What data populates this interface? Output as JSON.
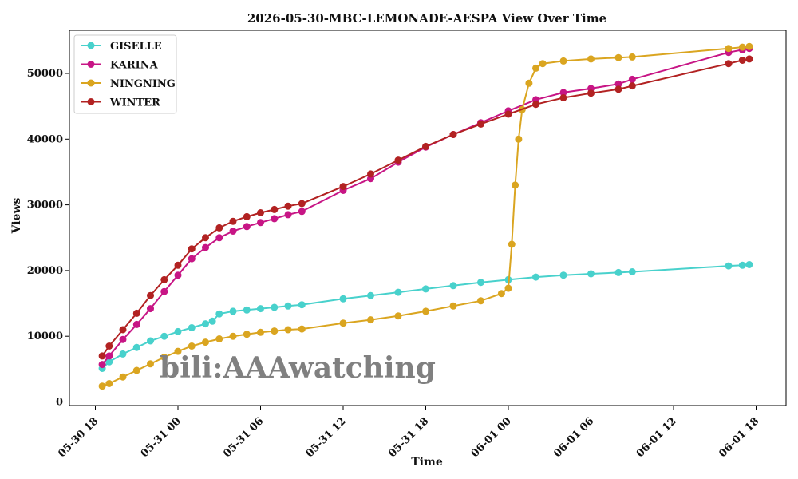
{
  "chart_data": {
    "type": "line",
    "title": "2026-05-30-MBC-LEMONADE-AESPA View Over Time",
    "xlabel": "Time",
    "ylabel": "Views",
    "x_axis": "datetime",
    "xlim": [
      "2026-05-30 18:00",
      "2026-06-01 18:00"
    ],
    "ylim": [
      0,
      56000
    ],
    "x_ticks": [
      "05-30 18",
      "05-31 00",
      "05-31 06",
      "05-31 12",
      "05-31 18",
      "06-01 00",
      "06-01 06",
      "06-01 12",
      "06-01 18"
    ],
    "y_ticks": [
      "0",
      "10000",
      "20000",
      "30000",
      "40000",
      "50000"
    ],
    "grid": false,
    "legend_position": "top-left",
    "watermark": "bili:AAAwatching",
    "series": [
      {
        "name": "GISELLE",
        "color": "#48D1CC",
        "points": [
          [
            "2026-05-30 18:30",
            5100
          ],
          [
            "2026-05-30 19:00",
            6100
          ],
          [
            "2026-05-30 20:00",
            7300
          ],
          [
            "2026-05-30 21:00",
            8300
          ],
          [
            "2026-05-30 22:00",
            9300
          ],
          [
            "2026-05-30 23:00",
            10000
          ],
          [
            "2026-05-31 00:00",
            10700
          ],
          [
            "2026-05-31 01:00",
            11300
          ],
          [
            "2026-05-31 02:00",
            11900
          ],
          [
            "2026-05-31 02:30",
            12300
          ],
          [
            "2026-05-31 03:00",
            13400
          ],
          [
            "2026-05-31 04:00",
            13800
          ],
          [
            "2026-05-31 05:00",
            14000
          ],
          [
            "2026-05-31 06:00",
            14200
          ],
          [
            "2026-05-31 07:00",
            14400
          ],
          [
            "2026-05-31 08:00",
            14600
          ],
          [
            "2026-05-31 09:00",
            14800
          ],
          [
            "2026-05-31 12:00",
            15700
          ],
          [
            "2026-05-31 14:00",
            16200
          ],
          [
            "2026-05-31 16:00",
            16700
          ],
          [
            "2026-05-31 18:00",
            17200
          ],
          [
            "2026-05-31 20:00",
            17700
          ],
          [
            "2026-05-31 22:00",
            18200
          ],
          [
            "2026-06-01 00:00",
            18600
          ],
          [
            "2026-06-01 02:00",
            19000
          ],
          [
            "2026-06-01 04:00",
            19300
          ],
          [
            "2026-06-01 06:00",
            19500
          ],
          [
            "2026-06-01 08:00",
            19700
          ],
          [
            "2026-06-01 09:00",
            19800
          ],
          [
            "2026-06-01 16:00",
            20700
          ],
          [
            "2026-06-01 17:00",
            20800
          ],
          [
            "2026-06-01 17:30",
            20900
          ]
        ]
      },
      {
        "name": "KARINA",
        "color": "#C71585",
        "points": [
          [
            "2026-05-30 18:30",
            5700
          ],
          [
            "2026-05-30 19:00",
            7000
          ],
          [
            "2026-05-30 20:00",
            9500
          ],
          [
            "2026-05-30 21:00",
            11800
          ],
          [
            "2026-05-30 22:00",
            14200
          ],
          [
            "2026-05-30 23:00",
            16800
          ],
          [
            "2026-05-31 00:00",
            19300
          ],
          [
            "2026-05-31 01:00",
            21800
          ],
          [
            "2026-05-31 02:00",
            23500
          ],
          [
            "2026-05-31 03:00",
            25000
          ],
          [
            "2026-05-31 04:00",
            26000
          ],
          [
            "2026-05-31 05:00",
            26700
          ],
          [
            "2026-05-31 06:00",
            27300
          ],
          [
            "2026-05-31 07:00",
            27900
          ],
          [
            "2026-05-31 08:00",
            28500
          ],
          [
            "2026-05-31 09:00",
            29000
          ],
          [
            "2026-05-31 12:00",
            32200
          ],
          [
            "2026-05-31 14:00",
            34000
          ],
          [
            "2026-05-31 16:00",
            36500
          ],
          [
            "2026-05-31 18:00",
            38800
          ],
          [
            "2026-05-31 20:00",
            40700
          ],
          [
            "2026-05-31 22:00",
            42500
          ],
          [
            "2026-06-01 00:00",
            44300
          ],
          [
            "2026-06-01 02:00",
            46000
          ],
          [
            "2026-06-01 04:00",
            47100
          ],
          [
            "2026-06-01 06:00",
            47700
          ],
          [
            "2026-06-01 08:00",
            48400
          ],
          [
            "2026-06-01 09:00",
            49100
          ],
          [
            "2026-06-01 16:00",
            53200
          ],
          [
            "2026-06-01 17:00",
            53600
          ],
          [
            "2026-06-01 17:30",
            53800
          ]
        ]
      },
      {
        "name": "NINGNING",
        "color": "#DAA520",
        "points": [
          [
            "2026-05-30 18:30",
            2400
          ],
          [
            "2026-05-30 19:00",
            2800
          ],
          [
            "2026-05-30 20:00",
            3800
          ],
          [
            "2026-05-30 21:00",
            4800
          ],
          [
            "2026-05-30 22:00",
            5800
          ],
          [
            "2026-05-30 23:00",
            6800
          ],
          [
            "2026-05-31 00:00",
            7700
          ],
          [
            "2026-05-31 01:00",
            8500
          ],
          [
            "2026-05-31 02:00",
            9100
          ],
          [
            "2026-05-31 03:00",
            9600
          ],
          [
            "2026-05-31 04:00",
            10000
          ],
          [
            "2026-05-31 05:00",
            10300
          ],
          [
            "2026-05-31 06:00",
            10600
          ],
          [
            "2026-05-31 07:00",
            10800
          ],
          [
            "2026-05-31 08:00",
            11000
          ],
          [
            "2026-05-31 09:00",
            11100
          ],
          [
            "2026-05-31 12:00",
            12000
          ],
          [
            "2026-05-31 14:00",
            12500
          ],
          [
            "2026-05-31 16:00",
            13100
          ],
          [
            "2026-05-31 18:00",
            13800
          ],
          [
            "2026-05-31 20:00",
            14600
          ],
          [
            "2026-05-31 22:00",
            15400
          ],
          [
            "2026-05-31 23:30",
            16500
          ],
          [
            "2026-06-01 00:00",
            17300
          ],
          [
            "2026-06-01 00:15",
            24000
          ],
          [
            "2026-06-01 00:30",
            33000
          ],
          [
            "2026-06-01 00:45",
            40000
          ],
          [
            "2026-06-01 01:00",
            44500
          ],
          [
            "2026-06-01 01:30",
            48500
          ],
          [
            "2026-06-01 02:00",
            50800
          ],
          [
            "2026-06-01 02:30",
            51500
          ],
          [
            "2026-06-01 04:00",
            51900
          ],
          [
            "2026-06-01 06:00",
            52200
          ],
          [
            "2026-06-01 08:00",
            52400
          ],
          [
            "2026-06-01 09:00",
            52500
          ],
          [
            "2026-06-01 16:00",
            53800
          ],
          [
            "2026-06-01 17:00",
            54000
          ],
          [
            "2026-06-01 17:30",
            54100
          ]
        ]
      },
      {
        "name": "WINTER",
        "color": "#B22222",
        "points": [
          [
            "2026-05-30 18:30",
            7000
          ],
          [
            "2026-05-30 19:00",
            8500
          ],
          [
            "2026-05-30 20:00",
            11000
          ],
          [
            "2026-05-30 21:00",
            13500
          ],
          [
            "2026-05-30 22:00",
            16200
          ],
          [
            "2026-05-30 23:00",
            18600
          ],
          [
            "2026-05-31 00:00",
            20800
          ],
          [
            "2026-05-31 01:00",
            23300
          ],
          [
            "2026-05-31 02:00",
            25000
          ],
          [
            "2026-05-31 03:00",
            26500
          ],
          [
            "2026-05-31 04:00",
            27500
          ],
          [
            "2026-05-31 05:00",
            28200
          ],
          [
            "2026-05-31 06:00",
            28800
          ],
          [
            "2026-05-31 07:00",
            29300
          ],
          [
            "2026-05-31 08:00",
            29800
          ],
          [
            "2026-05-31 09:00",
            30200
          ],
          [
            "2026-05-31 12:00",
            32800
          ],
          [
            "2026-05-31 14:00",
            34700
          ],
          [
            "2026-05-31 16:00",
            36800
          ],
          [
            "2026-05-31 18:00",
            38900
          ],
          [
            "2026-05-31 20:00",
            40700
          ],
          [
            "2026-05-31 22:00",
            42300
          ],
          [
            "2026-06-01 00:00",
            43800
          ],
          [
            "2026-06-01 02:00",
            45300
          ],
          [
            "2026-06-01 04:00",
            46300
          ],
          [
            "2026-06-01 06:00",
            47000
          ],
          [
            "2026-06-01 08:00",
            47600
          ],
          [
            "2026-06-01 09:00",
            48100
          ],
          [
            "2026-06-01 16:00",
            51500
          ],
          [
            "2026-06-01 17:00",
            52000
          ],
          [
            "2026-06-01 17:30",
            52200
          ]
        ]
      }
    ]
  }
}
